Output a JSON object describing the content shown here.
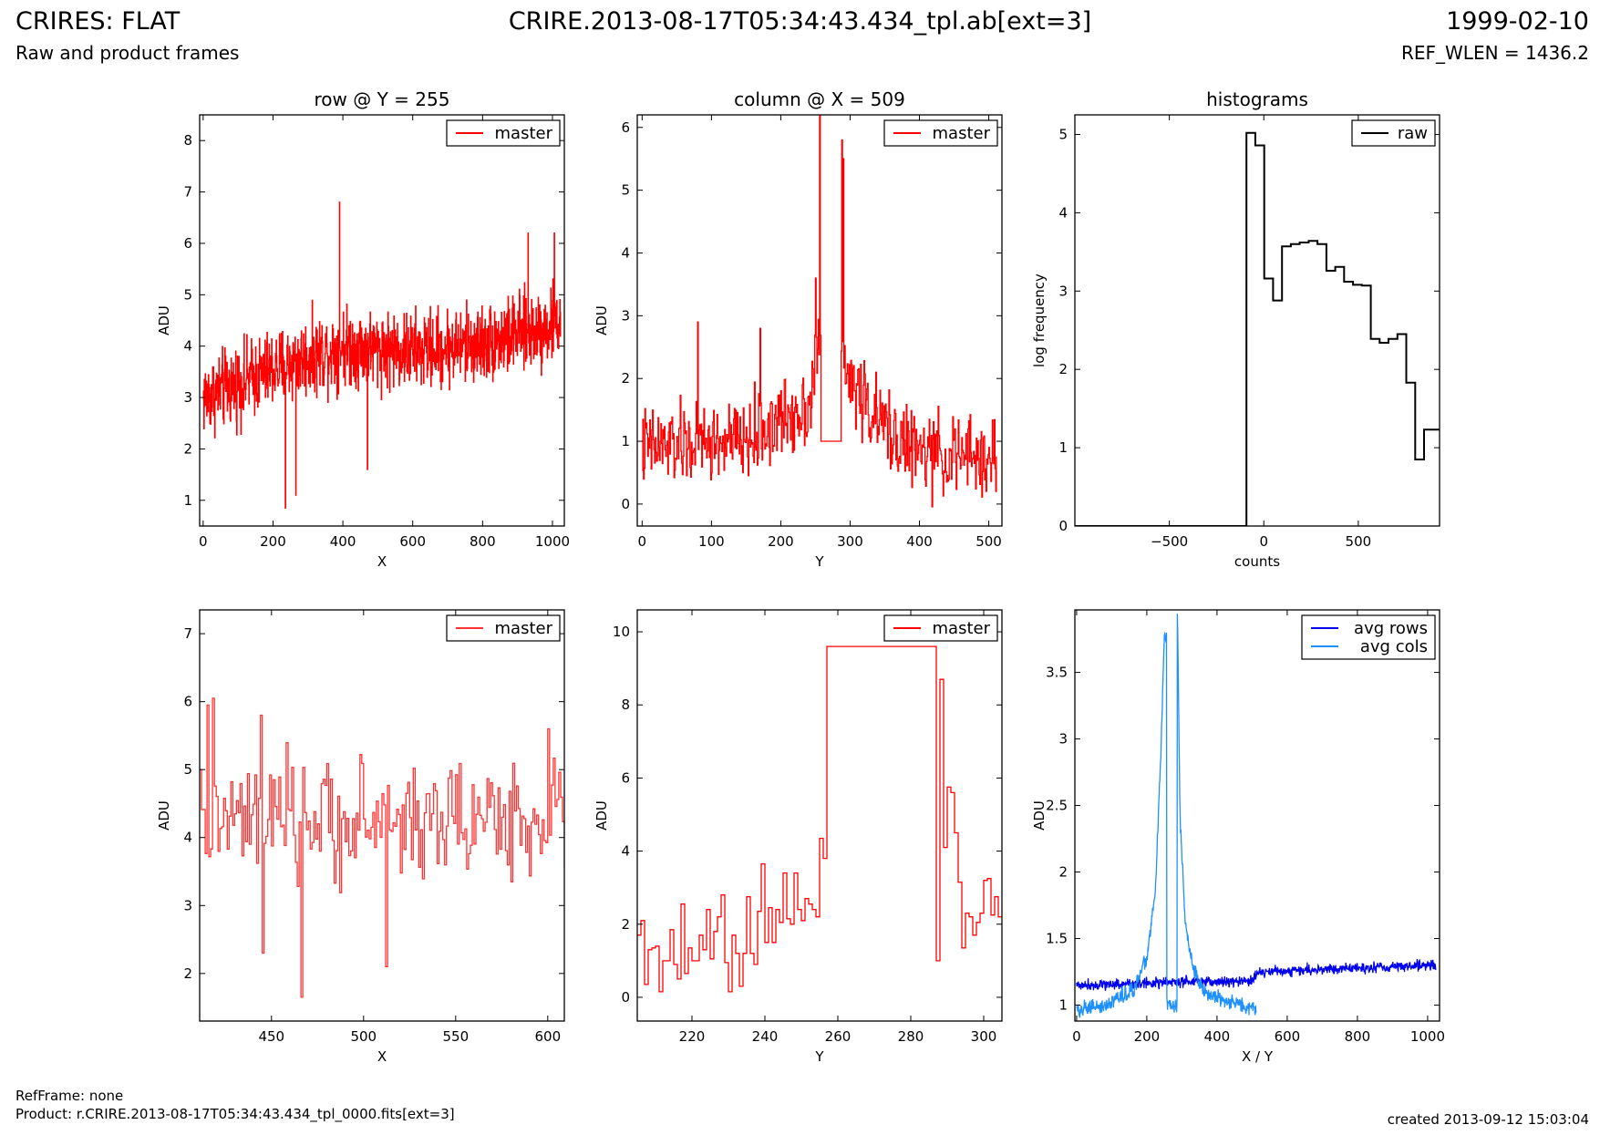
{
  "header": {
    "title": "CRIRES: FLAT",
    "subtitle": "Raw and product frames",
    "file": "CRIRE.2013-08-17T05:34:43.434_tpl.ab[ext=3]",
    "date": "1999-02-10",
    "ref_wlen": "REF_WLEN = 1436.2"
  },
  "footer": {
    "ref_frame": "RefFrame: none",
    "product": "Product: r.CRIRE.2013-08-17T05:34:43.434_tpl_0000.fits[ext=3]",
    "created": "created 2013-09-12 15:03:04"
  },
  "colors": {
    "master": "#ff0000",
    "avg_rows": "#0000ee",
    "avg_cols": "#1e90ff",
    "raw": "#000000"
  },
  "chart_data": [
    {
      "type": "line",
      "title": "row @ Y = 255",
      "xlabel": "X",
      "ylabel": "ADU",
      "xlim": [
        -10,
        1034
      ],
      "ylim": [
        0.5,
        8.5
      ],
      "xticks": [
        0,
        200,
        400,
        600,
        800,
        1000
      ],
      "yticks": [
        1,
        2,
        3,
        4,
        5,
        6,
        7,
        8
      ],
      "legend": "top-right",
      "grid": false,
      "series": [
        {
          "name": "master",
          "color": "#ff0000",
          "step": true,
          "trend": {
            "x": [
              0,
              200,
              400,
              600,
              800,
              1023
            ],
            "y": [
              3.0,
              3.55,
              4.0,
              3.9,
              4.05,
              4.45
            ]
          },
          "noise": 0.65,
          "n": 1024,
          "spikes": [
            [
              390,
              6.8
            ],
            [
              235,
              0.85
            ],
            [
              265,
              1.1
            ],
            [
              470,
              1.6
            ],
            [
              1005,
              6.2
            ],
            [
              930,
              6.2
            ]
          ]
        }
      ]
    },
    {
      "type": "line",
      "title": "column @ X = 509",
      "xlabel": "Y",
      "ylabel": "ADU",
      "xlim": [
        -7,
        519
      ],
      "ylim": [
        -0.35,
        6.2
      ],
      "xticks": [
        0,
        100,
        200,
        300,
        400,
        500
      ],
      "yticks": [
        0,
        1,
        2,
        3,
        4,
        5,
        6
      ],
      "legend": "top-right",
      "grid": false,
      "series": [
        {
          "name": "master",
          "color": "#ff0000",
          "step": true,
          "trend": {
            "x": [
              0,
              150,
              240,
              255,
              300,
              340,
              400,
              511
            ],
            "y": [
              0.9,
              1.0,
              1.6,
              2.6,
              2.0,
              1.3,
              0.8,
              0.7
            ]
          },
          "noise": 0.55,
          "n": 512,
          "gap": [
            257,
            287
          ],
          "gap_value": 1.0,
          "spikes": [
            [
              80,
              2.9
            ],
            [
              256,
              6.2
            ],
            [
              288,
              5.8
            ],
            [
              290,
              5.5
            ],
            [
              170,
              2.8
            ],
            [
              250,
              3.6
            ]
          ]
        }
      ]
    },
    {
      "type": "line",
      "title": "histograms",
      "xlabel": "counts",
      "ylabel": "log frequency",
      "xlim": [
        -1000,
        930
      ],
      "ylim": [
        0,
        5.25
      ],
      "xticks": [
        -500,
        0,
        500
      ],
      "yticks": [
        0,
        1,
        2,
        3,
        4,
        5
      ],
      "legend": "top-right",
      "grid": false,
      "series": [
        {
          "name": "raw",
          "color": "#000000",
          "step": true,
          "edges": [
            -1000,
            -92,
            -45,
            2,
            49,
            96,
            143,
            190,
            237,
            284,
            331,
            378,
            425,
            472,
            519,
            566,
            613,
            660,
            707,
            754,
            801,
            848,
            895,
            930
          ],
          "values": [
            0,
            5.02,
            4.86,
            3.16,
            2.88,
            3.57,
            3.6,
            3.62,
            3.64,
            3.6,
            3.26,
            3.31,
            3.12,
            3.08,
            3.07,
            2.39,
            2.34,
            2.39,
            2.45,
            1.83,
            0.85,
            1.23,
            1.23
          ]
        }
      ]
    },
    {
      "type": "line",
      "xlabel": "X",
      "ylabel": "ADU",
      "xlim": [
        411,
        609
      ],
      "ylim": [
        1.3,
        7.35
      ],
      "xticks": [
        450,
        500,
        550,
        600
      ],
      "yticks": [
        2,
        3,
        4,
        5,
        6,
        7
      ],
      "legend": "top-right",
      "grid": false,
      "series": [
        {
          "name": "master",
          "color": "#ff3333",
          "step": true,
          "trend": {
            "x": [
              411,
              609
            ],
            "y": [
              4.2,
              4.3
            ]
          },
          "noise": 0.75,
          "n": 199,
          "spikes": [
            [
              415,
              5.95
            ],
            [
              418,
              6.05
            ],
            [
              466,
              1.65
            ],
            [
              445,
              2.3
            ],
            [
              512,
              2.1
            ],
            [
              444,
              5.8
            ],
            [
              600,
              5.6
            ]
          ]
        }
      ]
    },
    {
      "type": "line",
      "xlabel": "Y",
      "ylabel": "ADU",
      "xlim": [
        205,
        305
      ],
      "ylim": [
        -0.65,
        10.6
      ],
      "xticks": [
        220,
        240,
        260,
        280,
        300
      ],
      "yticks": [
        0,
        2,
        4,
        6,
        8,
        10
      ],
      "legend": "top-right",
      "grid": false,
      "series": [
        {
          "name": "master",
          "color": "#ff0000",
          "step": true,
          "x": [
            205,
            206,
            207,
            208,
            209,
            210,
            211,
            212,
            213,
            214,
            215,
            216,
            217,
            218,
            219,
            220,
            221,
            222,
            223,
            224,
            225,
            226,
            227,
            228,
            229,
            230,
            231,
            232,
            233,
            234,
            235,
            236,
            237,
            238,
            239,
            240,
            241,
            242,
            243,
            244,
            245,
            246,
            247,
            248,
            249,
            250,
            251,
            252,
            253,
            254,
            255,
            256,
            257,
            287,
            288,
            289,
            290,
            291,
            292,
            293,
            294,
            295,
            296,
            297,
            298,
            299,
            300,
            301,
            302,
            303,
            304,
            305
          ],
          "values": [
            1.7,
            2.1,
            0.35,
            1.3,
            1.35,
            1.4,
            0.15,
            1.0,
            1.0,
            1.85,
            0.9,
            0.5,
            2.55,
            0.65,
            1.35,
            1.0,
            1.0,
            1.7,
            1.3,
            2.4,
            1.05,
            1.8,
            2.2,
            2.8,
            0.95,
            0.15,
            1.7,
            1.2,
            0.3,
            1.2,
            2.75,
            1.2,
            0.9,
            2.35,
            3.65,
            1.5,
            2.45,
            1.5,
            2.4,
            2.05,
            3.4,
            2.15,
            2.0,
            3.4,
            2.4,
            2.1,
            2.7,
            2.55,
            2.4,
            2.2,
            4.35,
            3.8,
            9.6,
            1.0,
            8.7,
            4.1,
            5.75,
            5.6,
            4.5,
            3.15,
            1.35,
            2.3,
            2.2,
            1.7,
            2.05,
            2.3,
            3.2,
            3.25,
            2.25,
            2.75,
            2.2,
            2.2
          ]
        }
      ]
    },
    {
      "type": "line",
      "xlabel": "X / Y",
      "ylabel": "ADU",
      "xlim": [
        -5,
        1034
      ],
      "ylim": [
        0.88,
        3.97
      ],
      "xticks": [
        0,
        200,
        400,
        600,
        800,
        1000
      ],
      "yticks": [
        1.0,
        1.5,
        2.0,
        2.5,
        3.0,
        3.5
      ],
      "legend": "top-right",
      "grid": false,
      "series": [
        {
          "name": "avg rows",
          "color": "#0000ee",
          "trend": {
            "x": [
              0,
              250,
              500,
              520,
              1023
            ],
            "y": [
              1.15,
              1.17,
              1.18,
              1.25,
              1.3
            ]
          },
          "noise": 0.035,
          "n": 1024
        },
        {
          "name": "avg cols",
          "color": "#1e90ff",
          "trend": {
            "x": [
              0,
              100,
              160,
              200,
              225,
              240,
              250,
              256,
              257,
              286,
              287,
              295,
              310,
              330,
              360,
              400,
              511
            ],
            "y": [
              0.95,
              1.02,
              1.12,
              1.35,
              1.9,
              2.9,
              3.8,
              3.75,
              0.99,
              0.99,
              3.95,
              2.4,
              1.6,
              1.3,
              1.1,
              1.05,
              0.97
            ]
          },
          "noise": 0.05,
          "n": 512
        }
      ]
    }
  ]
}
